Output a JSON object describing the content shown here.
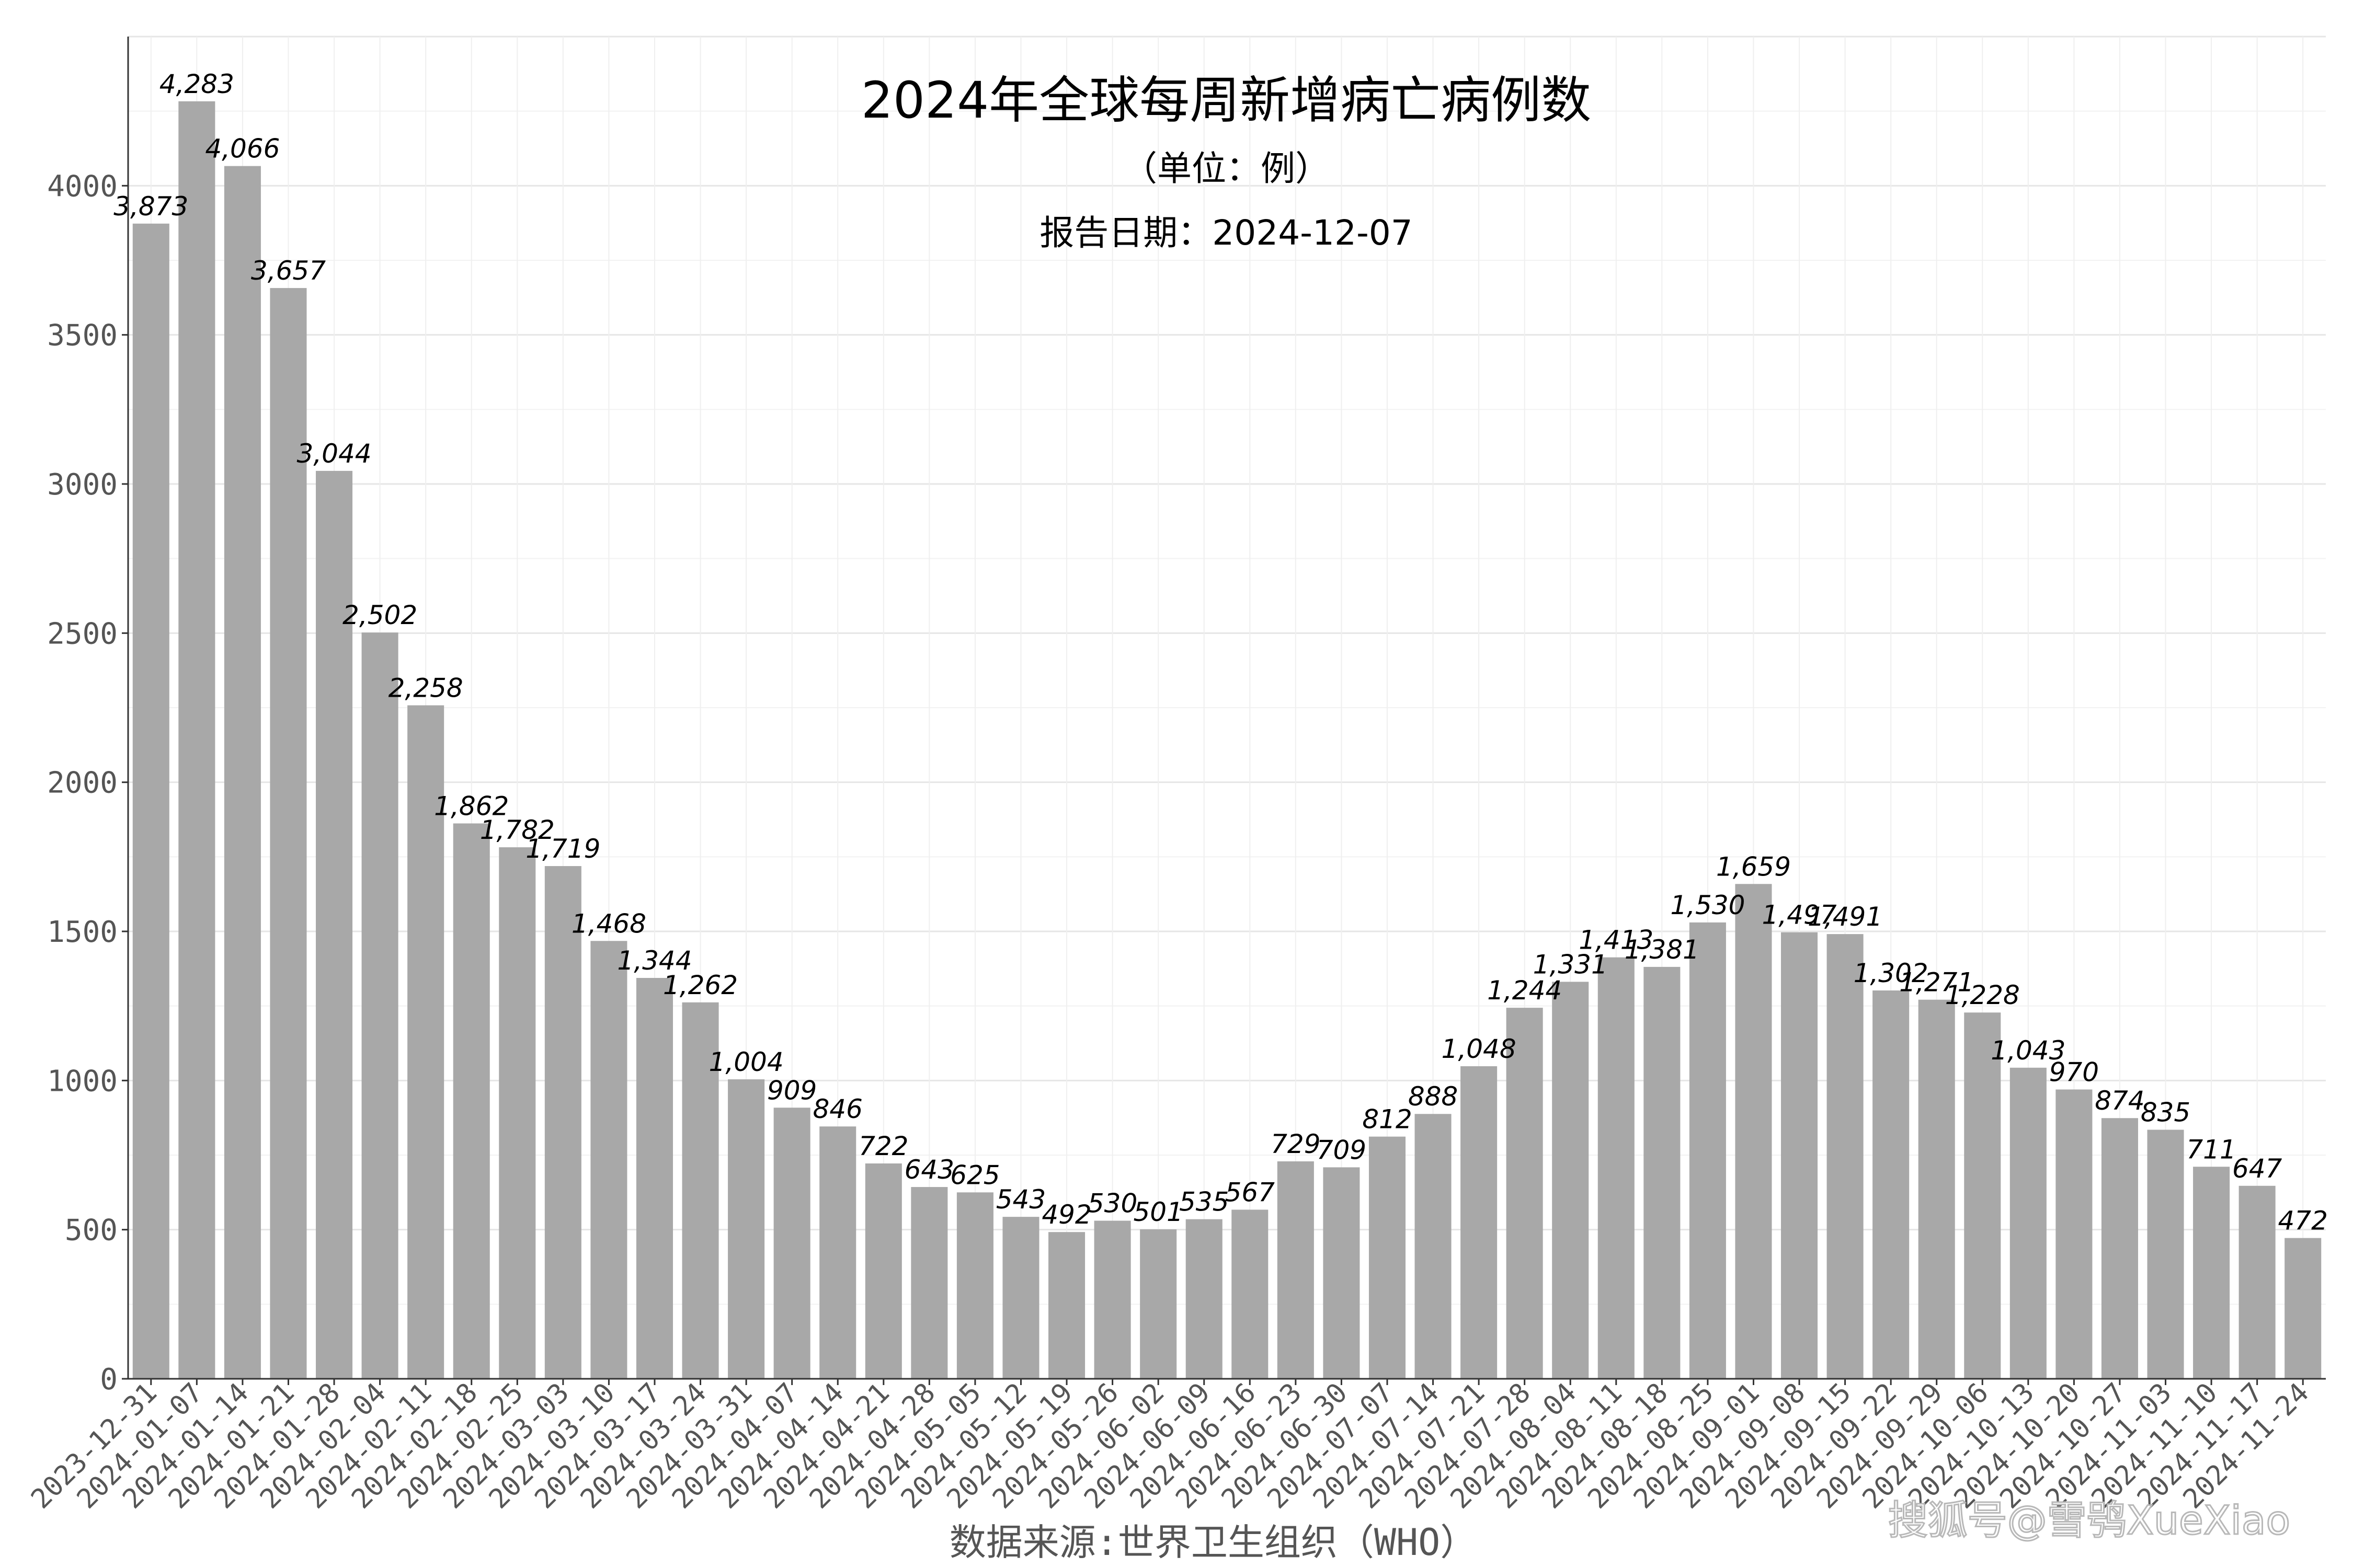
{
  "chart_data": {
    "type": "bar",
    "title": "2024年全球每周新增病亡病例数",
    "subtitle": "（单位：例）",
    "report_date": "报告日期：2024-12-07",
    "source": "数据来源:世界卫生组织（WHO）",
    "watermark": "搜狐号@雪鸮XueXiao",
    "xlabel": "",
    "ylabel": "",
    "ylim": [
      0,
      4500
    ],
    "yticks": [
      0,
      500,
      1000,
      1500,
      2000,
      2500,
      3000,
      3500,
      4000
    ],
    "grid": true,
    "bar_color": "#a8a8a8",
    "categories": [
      "2023-12-31",
      "2024-01-07",
      "2024-01-14",
      "2024-01-21",
      "2024-01-28",
      "2024-02-04",
      "2024-02-11",
      "2024-02-18",
      "2024-02-25",
      "2024-03-03",
      "2024-03-10",
      "2024-03-17",
      "2024-03-24",
      "2024-03-31",
      "2024-04-07",
      "2024-04-14",
      "2024-04-21",
      "2024-04-28",
      "2024-05-05",
      "2024-05-12",
      "2024-05-19",
      "2024-05-26",
      "2024-06-02",
      "2024-06-09",
      "2024-06-16",
      "2024-06-23",
      "2024-06-30",
      "2024-07-07",
      "2024-07-14",
      "2024-07-21",
      "2024-07-28",
      "2024-08-04",
      "2024-08-11",
      "2024-08-18",
      "2024-08-25",
      "2024-09-01",
      "2024-09-08",
      "2024-09-15",
      "2024-09-22",
      "2024-09-29",
      "2024-10-06",
      "2024-10-13",
      "2024-10-20",
      "2024-10-27",
      "2024-11-03",
      "2024-11-10",
      "2024-11-17",
      "2024-11-24"
    ],
    "values": [
      3873,
      4283,
      4066,
      3657,
      3044,
      2502,
      2258,
      1862,
      1782,
      1719,
      1468,
      1344,
      1262,
      1004,
      909,
      846,
      722,
      643,
      625,
      543,
      492,
      530,
      501,
      535,
      567,
      729,
      709,
      812,
      888,
      1048,
      1244,
      1331,
      1413,
      1381,
      1530,
      1659,
      1497,
      1491,
      1302,
      1271,
      1228,
      1043,
      970,
      874,
      835,
      711,
      647,
      472
    ],
    "value_labels": [
      "3,873",
      "4,283",
      "4,066",
      "3,657",
      "3,044",
      "2,502",
      "2,258",
      "1,862",
      "1,782",
      "1,719",
      "1,468",
      "1,344",
      "1,262",
      "1,004",
      "909",
      "846",
      "722",
      "643",
      "625",
      "543",
      "492",
      "530",
      "501",
      "535",
      "567",
      "729",
      "709",
      "812",
      "888",
      "1,048",
      "1,244",
      "1,331",
      "1,413",
      "1,381",
      "1,530",
      "1,659",
      "1,497",
      "1,491",
      "1,302",
      "1,271",
      "1,228",
      "1,043",
      "970",
      "874",
      "835",
      "711",
      "647",
      "472"
    ]
  }
}
